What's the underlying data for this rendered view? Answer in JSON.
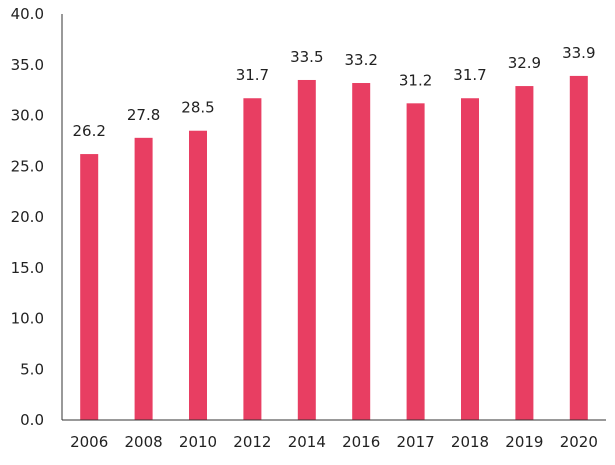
{
  "chart_data": {
    "type": "bar",
    "title": "",
    "xlabel": "",
    "ylabel": "",
    "categories": [
      "2006",
      "2008",
      "2010",
      "2012",
      "2014",
      "2016",
      "2017",
      "2018",
      "2019",
      "2020"
    ],
    "values": [
      26.2,
      27.8,
      28.5,
      31.7,
      33.5,
      33.2,
      31.2,
      31.7,
      32.9,
      33.9
    ],
    "value_labels": [
      "26.2",
      "27.8",
      "28.5",
      "31.7",
      "33.5",
      "33.2",
      "31.2",
      "31.7",
      "32.9",
      "33.9"
    ],
    "ylim": [
      0,
      40
    ],
    "yticks": [
      "0.0",
      "5.0",
      "10.0",
      "15.0",
      "20.0",
      "25.0",
      "30.0",
      "35.0",
      "40.0"
    ],
    "grid": false,
    "legend": "none",
    "bar_color": "#e83e62",
    "axis_color": "#333333"
  }
}
